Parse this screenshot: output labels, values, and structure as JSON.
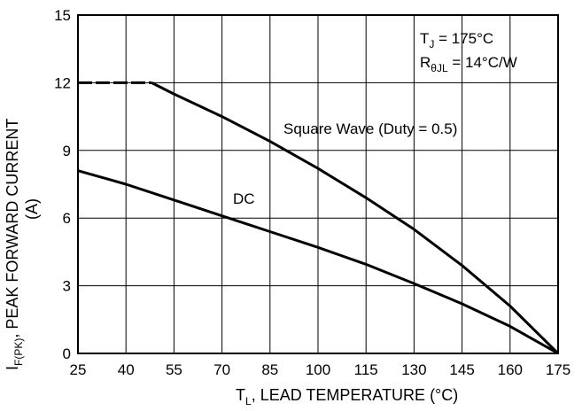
{
  "chart_data": {
    "type": "line",
    "xlabel": {
      "main": "T",
      "sub": "L",
      "rest": ", LEAD TEMPERATURE (°C)"
    },
    "ylabel": {
      "main": "I",
      "sub": "F(PK)",
      "rest": ", PEAK FORWARD CURRENT",
      "line2": "(A)"
    },
    "xlim": [
      25,
      175
    ],
    "ylim": [
      0,
      15
    ],
    "xticks": [
      25,
      40,
      55,
      70,
      85,
      100,
      115,
      130,
      145,
      160,
      175
    ],
    "yticks": [
      0,
      3,
      6,
      9,
      12,
      15
    ],
    "grid": true,
    "series": [
      {
        "name": "Square Wave (Duty = 0.5)",
        "dashed_segment": {
          "x": [
            25,
            48
          ],
          "y": [
            12,
            12
          ]
        },
        "x": [
          48,
          55,
          70,
          85,
          100,
          115,
          130,
          145,
          160,
          175
        ],
        "y": [
          12,
          11.5,
          10.5,
          9.4,
          8.2,
          6.9,
          5.5,
          3.9,
          2.1,
          0
        ]
      },
      {
        "name": "DC",
        "x": [
          25,
          40,
          55,
          70,
          85,
          100,
          115,
          130,
          145,
          160,
          175
        ],
        "y": [
          8.1,
          7.5,
          6.8,
          6.1,
          5.4,
          4.7,
          3.95,
          3.1,
          2.2,
          1.2,
          0
        ]
      }
    ],
    "annotations": {
      "tj": {
        "main": "T",
        "sub": "J",
        "rest": " = 175°C"
      },
      "rth": {
        "main": "R",
        "sub": "θJL",
        "rest": " = 14°C/W"
      },
      "square_label": "Square Wave (Duty = 0.5)",
      "dc_label": "DC"
    }
  }
}
